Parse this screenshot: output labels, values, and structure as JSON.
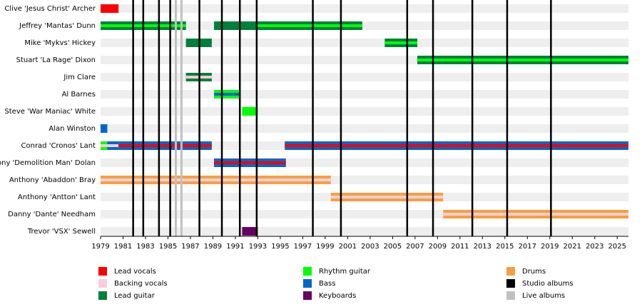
{
  "chart_data": {
    "type": "timeline",
    "xlim": [
      1979,
      2026
    ],
    "xticks": [
      1979,
      1981,
      1983,
      1985,
      1987,
      1989,
      1991,
      1993,
      1995,
      1997,
      1999,
      2001,
      2003,
      2005,
      2007,
      2009,
      2011,
      2013,
      2015,
      2017,
      2019,
      2021,
      2023,
      2025
    ],
    "legend": [
      {
        "name": "Lead vocals",
        "color": "#ff0000"
      },
      {
        "name": "Backing vocals",
        "color": "#ffccd5"
      },
      {
        "name": "Lead guitar",
        "color": "#00803c"
      },
      {
        "name": "Rhythm guitar",
        "color": "#00ff00"
      },
      {
        "name": "Bass",
        "color": "#0066cc"
      },
      {
        "name": "Keyboards",
        "color": "#660066"
      },
      {
        "name": "Drums",
        "color": "#f5a040"
      },
      {
        "name": "Studio albums",
        "color": "#000000"
      },
      {
        "name": "Live albums",
        "color": "#c0c0c0"
      }
    ],
    "members": [
      {
        "name": "Clive 'Jesus Christ' Archer",
        "periods": [
          {
            "start": 1979,
            "end": 1980.6,
            "role": "Lead vocals"
          }
        ]
      },
      {
        "name": "Jeffrey 'Mantas' Dunn",
        "periods": [
          {
            "start": 1979,
            "end": 1986.6,
            "role": "Lead guitar",
            "stripe": "Rhythm guitar"
          },
          {
            "start": 1989.1,
            "end": 1992.9,
            "role": "Lead guitar"
          },
          {
            "start": 1992.9,
            "end": 2002.3,
            "role": "Lead guitar",
            "stripe": "Rhythm guitar"
          }
        ]
      },
      {
        "name": "Mike 'Mykvs' Hickey",
        "periods": [
          {
            "start": 1986.6,
            "end": 1988.9,
            "role": "Lead guitar"
          },
          {
            "start": 2004.3,
            "end": 2007.2,
            "role": "Lead guitar",
            "stripe": "Rhythm guitar"
          }
        ]
      },
      {
        "name": "Stuart 'La Rage' Dixon",
        "periods": [
          {
            "start": 2007.2,
            "end": 2026,
            "role": "Lead guitar",
            "stripe": "Rhythm guitar"
          }
        ]
      },
      {
        "name": "Jim Clare",
        "periods": [
          {
            "start": 1986.6,
            "end": 1988.9,
            "role": "Lead guitar",
            "stripe": "Backing vocals"
          }
        ]
      },
      {
        "name": "Al Barnes",
        "periods": [
          {
            "start": 1989.1,
            "end": 1991.4,
            "role": "Rhythm guitar",
            "stripe": "Bass"
          }
        ]
      },
      {
        "name": "Steve 'War Maniac' White",
        "periods": [
          {
            "start": 1991.6,
            "end": 1993.0,
            "role": "Rhythm guitar"
          }
        ]
      },
      {
        "name": "Alan Winston",
        "periods": [
          {
            "start": 1979,
            "end": 1979.6,
            "role": "Bass"
          }
        ]
      },
      {
        "name": "Conrad 'Cronos' Lant",
        "periods": [
          {
            "start": 1979,
            "end": 1979.6,
            "role": "Rhythm guitar",
            "stripe": "Backing vocals"
          },
          {
            "start": 1979.6,
            "end": 1980.6,
            "role": "Bass",
            "stripe": "Backing vocals"
          },
          {
            "start": 1980.6,
            "end": 1988.9,
            "role": "Bass",
            "stripe": "Lead vocals"
          },
          {
            "start": 1995.4,
            "end": 2026,
            "role": "Bass",
            "stripe": "Lead vocals"
          }
        ]
      },
      {
        "name": "Tony 'Demolition Man' Dolan",
        "periods": [
          {
            "start": 1989.1,
            "end": 1995.5,
            "role": "Bass",
            "stripe": "Lead vocals"
          }
        ]
      },
      {
        "name": "Anthony 'Abaddon' Bray",
        "periods": [
          {
            "start": 1979,
            "end": 1999.5,
            "role": "Drums",
            "stripe": "Backing vocals"
          }
        ]
      },
      {
        "name": "Anthony 'Antton' Lant",
        "periods": [
          {
            "start": 1999.5,
            "end": 2009.5,
            "role": "Drums",
            "stripe": "Backing vocals"
          }
        ]
      },
      {
        "name": "Danny 'Dante' Needham",
        "periods": [
          {
            "start": 2009.5,
            "end": 2026,
            "role": "Drums",
            "stripe": "Backing vocals"
          }
        ]
      },
      {
        "name": "Trevor 'VSX' Sewell",
        "periods": [
          {
            "start": 1991.6,
            "end": 1993.0,
            "role": "Keyboards"
          }
        ]
      }
    ],
    "studio_albums": [
      1981.9,
      1982.8,
      1984.2,
      1985.2,
      1987.8,
      1989.8,
      1991.4,
      1992.9,
      1997.9,
      2000.4,
      2006.3,
      2008.6,
      2012.1,
      2015.2,
      2019.1
    ],
    "live_albums": [
      1985.7,
      1986.2
    ]
  }
}
